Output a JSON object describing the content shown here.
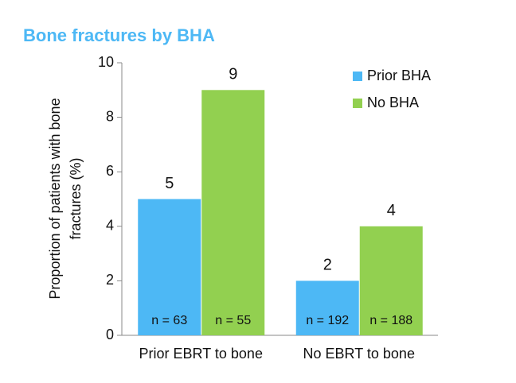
{
  "chart_data": {
    "type": "bar",
    "title": "Bone fractures by BHA",
    "y_label": [
      "Proportion of patients with bone",
      "fractures (%)"
    ],
    "categories": [
      "Prior EBRT to bone",
      "No EBRT to bone"
    ],
    "series": [
      {
        "name": "Prior BHA",
        "color": "#4db8f5",
        "values": [
          5,
          2
        ],
        "annotations": [
          "n = 63",
          "n = 192"
        ]
      },
      {
        "name": "No BHA",
        "color": "#92d050",
        "values": [
          9,
          4
        ],
        "annotations": [
          "n = 55",
          "n = 188"
        ]
      }
    ],
    "ylim": [
      0,
      10
    ],
    "yticks": [
      0,
      2,
      4,
      6,
      8,
      10
    ],
    "legend": "upper right"
  }
}
